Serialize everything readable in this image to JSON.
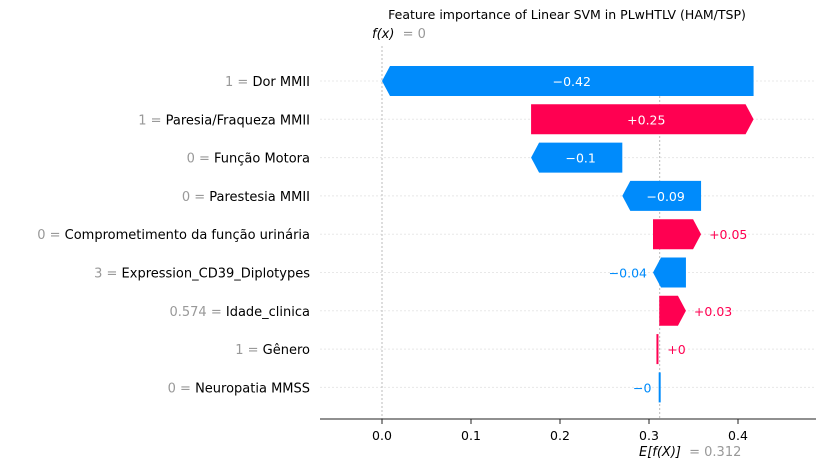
{
  "chart_data": {
    "type": "waterfall",
    "title": "Feature importance of Linear SVM in PLwHTLV (HAM/TSP)",
    "fx_label": "f(x)",
    "fx_value": "= 0",
    "ex_label": "E[f(X)]",
    "ex_value": "= 0.312",
    "base_value": 0.312,
    "final_value": 0,
    "xlim": [
      -0.07,
      0.485
    ],
    "xticks": [
      "0.0",
      "0.1",
      "0.2",
      "0.3",
      "0.4"
    ],
    "xtick_values": [
      0.0,
      0.1,
      0.2,
      0.3,
      0.4
    ],
    "colors": {
      "positive": "#ff0051",
      "negative": "#008bfb",
      "value_text": "#999999"
    },
    "features": [
      {
        "value": "1",
        "name": "Dor MMII",
        "contribution": -0.42,
        "start": 0.4175,
        "end": 0.0,
        "label": "−0.42"
      },
      {
        "value": "1",
        "name": "Paresia/Fraqueza MMII",
        "contribution": 0.25,
        "start": 0.1675,
        "end": 0.4175,
        "label": "+0.25"
      },
      {
        "value": "0",
        "name": "Função Motora",
        "contribution": -0.1,
        "start": 0.27,
        "end": 0.1675,
        "label": "−0.1"
      },
      {
        "value": "0",
        "name": "Parestesia MMII",
        "contribution": -0.09,
        "start": 0.3585,
        "end": 0.27,
        "label": "−0.09"
      },
      {
        "value": "0",
        "name": "Comprometimento da função urinária",
        "contribution": 0.05,
        "start": 0.3045,
        "end": 0.3585,
        "label": "+0.05"
      },
      {
        "value": "3",
        "name": "Expression_CD39_Diplotypes",
        "contribution": -0.04,
        "start": 0.3415,
        "end": 0.3045,
        "label": "−0.04"
      },
      {
        "value": "0.574",
        "name": "Idade_clinica",
        "contribution": 0.03,
        "start": 0.3115,
        "end": 0.3415,
        "label": "+0.03"
      },
      {
        "value": "1",
        "name": "Gênero",
        "contribution": 0.0,
        "start": 0.3095,
        "end": 0.3115,
        "label": "+0"
      },
      {
        "value": "0",
        "name": "Neuropatia MMSS",
        "contribution": 0.0,
        "start": 0.312,
        "end": 0.3095,
        "label": "−0"
      }
    ]
  }
}
